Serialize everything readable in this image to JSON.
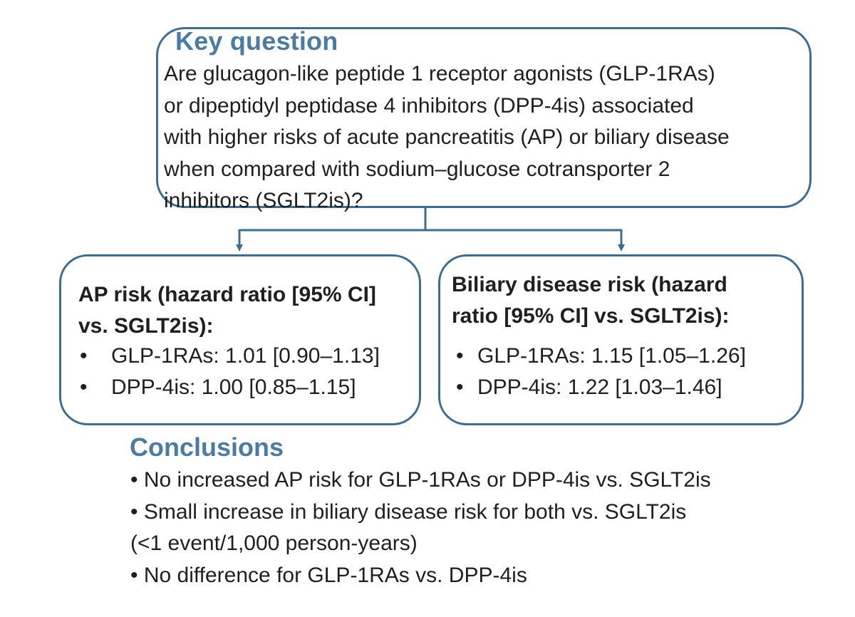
{
  "key_question": {
    "title": "Key question",
    "lines": [
      "Are glucagon-like peptide 1 receptor agonists (GLP-1RAs)",
      "or dipeptidyl peptidase 4 inhibitors (DPP-4is) associated",
      "with higher risks of acute pancreatitis (AP) or biliary disease",
      "when compared with sodium–glucose cotransporter 2",
      "inhibitors (SGLT2is)?"
    ]
  },
  "ap_risk": {
    "heading_lines": [
      "AP risk (hazard ratio [95% CI]",
      "vs. SGLT2is):"
    ],
    "bullet": "•",
    "items": [
      "GLP-1RAs: 1.01 [0.90–1.13]",
      "DPP-4is: 1.00 [0.85–1.15]"
    ]
  },
  "biliary_risk": {
    "heading_lines": [
      "Biliary disease risk (hazard",
      "ratio [95% CI] vs. SGLT2is):"
    ],
    "bullet": "•",
    "items": [
      "GLP-1RAs: 1.15 [1.05–1.26]",
      "DPP-4is: 1.22 [1.03–1.46]"
    ]
  },
  "conclusions": {
    "title": "Conclusions",
    "lines": [
      "• No increased AP risk for GLP-1RAs or DPP-4is vs. SGLT2is",
      "• Small increase in biliary disease risk for both vs. SGLT2is",
      "(<1 event/1,000 person-years)",
      "• No difference for GLP-1RAs vs. DPP-4is"
    ]
  },
  "colors": {
    "accent": "#4b7ba2",
    "border": "#3d6e92",
    "text": "#1f1f1f"
  }
}
